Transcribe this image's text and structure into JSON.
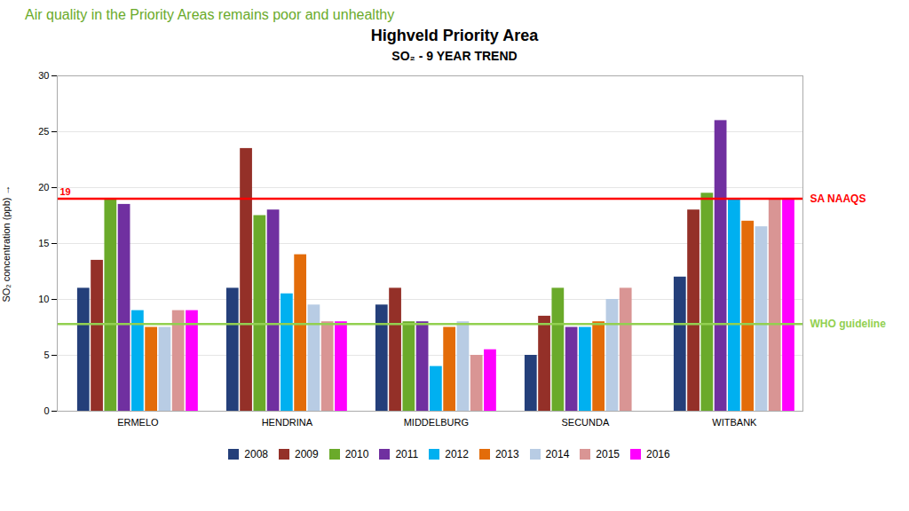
{
  "chart_data": {
    "type": "bar",
    "slide_title": "Air quality in the Priority Areas remains poor and unhealthy",
    "title": "Highveld Priority Area",
    "subtitle": "SO₂ - 9 YEAR TREND",
    "ylabel": "SO₂ concentration (ppb)",
    "categories": [
      "ERMELO",
      "HENDRINA",
      "MIDDELBURG",
      "SECUNDA",
      "WITBANK"
    ],
    "series": [
      {
        "name": "2008",
        "color": "#243f7a",
        "values": [
          11,
          11,
          9.5,
          5,
          12
        ]
      },
      {
        "name": "2009",
        "color": "#943028",
        "values": [
          13.5,
          23.5,
          11,
          8.5,
          18
        ]
      },
      {
        "name": "2010",
        "color": "#6aaa2a",
        "values": [
          19,
          17.5,
          8,
          11,
          19.5
        ]
      },
      {
        "name": "2011",
        "color": "#7030a0",
        "values": [
          18.5,
          18,
          8,
          7.5,
          26
        ]
      },
      {
        "name": "2012",
        "color": "#00b0f0",
        "values": [
          9,
          10.5,
          4,
          7.5,
          19
        ]
      },
      {
        "name": "2013",
        "color": "#e36c09",
        "values": [
          7.5,
          14,
          7.5,
          8,
          17
        ]
      },
      {
        "name": "2014",
        "color": "#b8cce4",
        "values": [
          7.5,
          9.5,
          8,
          10,
          16.5
        ]
      },
      {
        "name": "2015",
        "color": "#d99594",
        "values": [
          9,
          8,
          5,
          11,
          19
        ]
      },
      {
        "name": "2016",
        "color": "#ff00ff",
        "values": [
          9,
          8,
          5.5,
          0,
          19
        ]
      }
    ],
    "reference_lines": [
      {
        "name": "SA NAAQS",
        "value": 19,
        "color": "#ff0000",
        "value_label": "19"
      },
      {
        "name": "WHO guideline",
        "value": 7.8,
        "color": "#92d050"
      }
    ],
    "ylim": [
      0,
      30
    ],
    "yticks": [
      0,
      5,
      10,
      15,
      20,
      25,
      30
    ],
    "grid": true,
    "legend": "bottom"
  }
}
